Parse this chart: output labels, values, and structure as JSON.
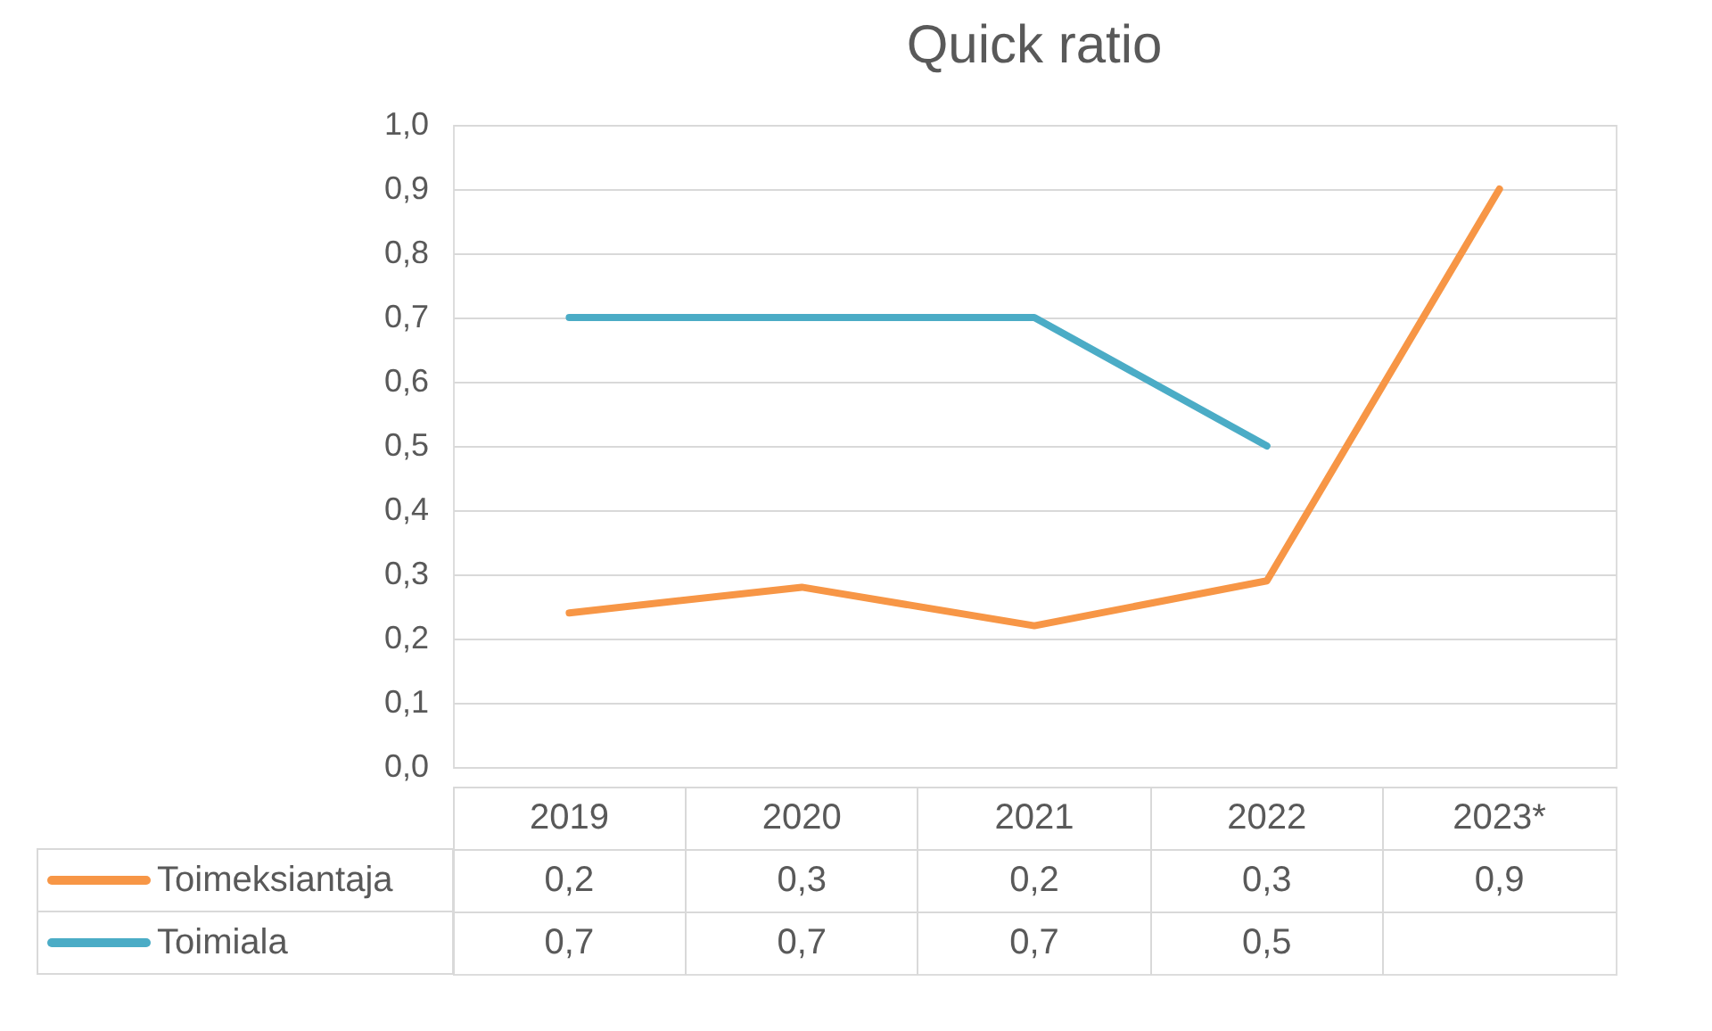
{
  "chart_data": {
    "type": "line",
    "title": "Quick ratio",
    "categories": [
      "2019",
      "2020",
      "2021",
      "2022",
      "2023*"
    ],
    "series": [
      {
        "name": "Toimeksiantaja",
        "color": "#f79646",
        "values": [
          0.24,
          0.28,
          0.22,
          0.29,
          0.9
        ],
        "value_labels": [
          "0,2",
          "0,3",
          "0,2",
          "0,3",
          "0,9"
        ]
      },
      {
        "name": "Toimiala",
        "color": "#4bacc6",
        "values": [
          0.7,
          0.7,
          0.7,
          0.5,
          null
        ],
        "value_labels": [
          "0,7",
          "0,7",
          "0,7",
          "0,5",
          null
        ]
      }
    ],
    "ylim": [
      0,
      1
    ],
    "yticks": [
      {
        "value": 0,
        "label": "0,0"
      },
      {
        "value": 0.1,
        "label": "0,1"
      },
      {
        "value": 0.2,
        "label": "0,2"
      },
      {
        "value": 0.3,
        "label": "0,3"
      },
      {
        "value": 0.4,
        "label": "0,4"
      },
      {
        "value": 0.5,
        "label": "0,5"
      },
      {
        "value": 0.6,
        "label": "0,6"
      },
      {
        "value": 0.7,
        "label": "0,7"
      },
      {
        "value": 0.8,
        "label": "0,8"
      },
      {
        "value": 0.9,
        "label": "0,9"
      },
      {
        "value": 1,
        "label": "1,0"
      }
    ],
    "grid": "y",
    "legend": "bottom",
    "line_style": "solid",
    "marker": "none"
  }
}
